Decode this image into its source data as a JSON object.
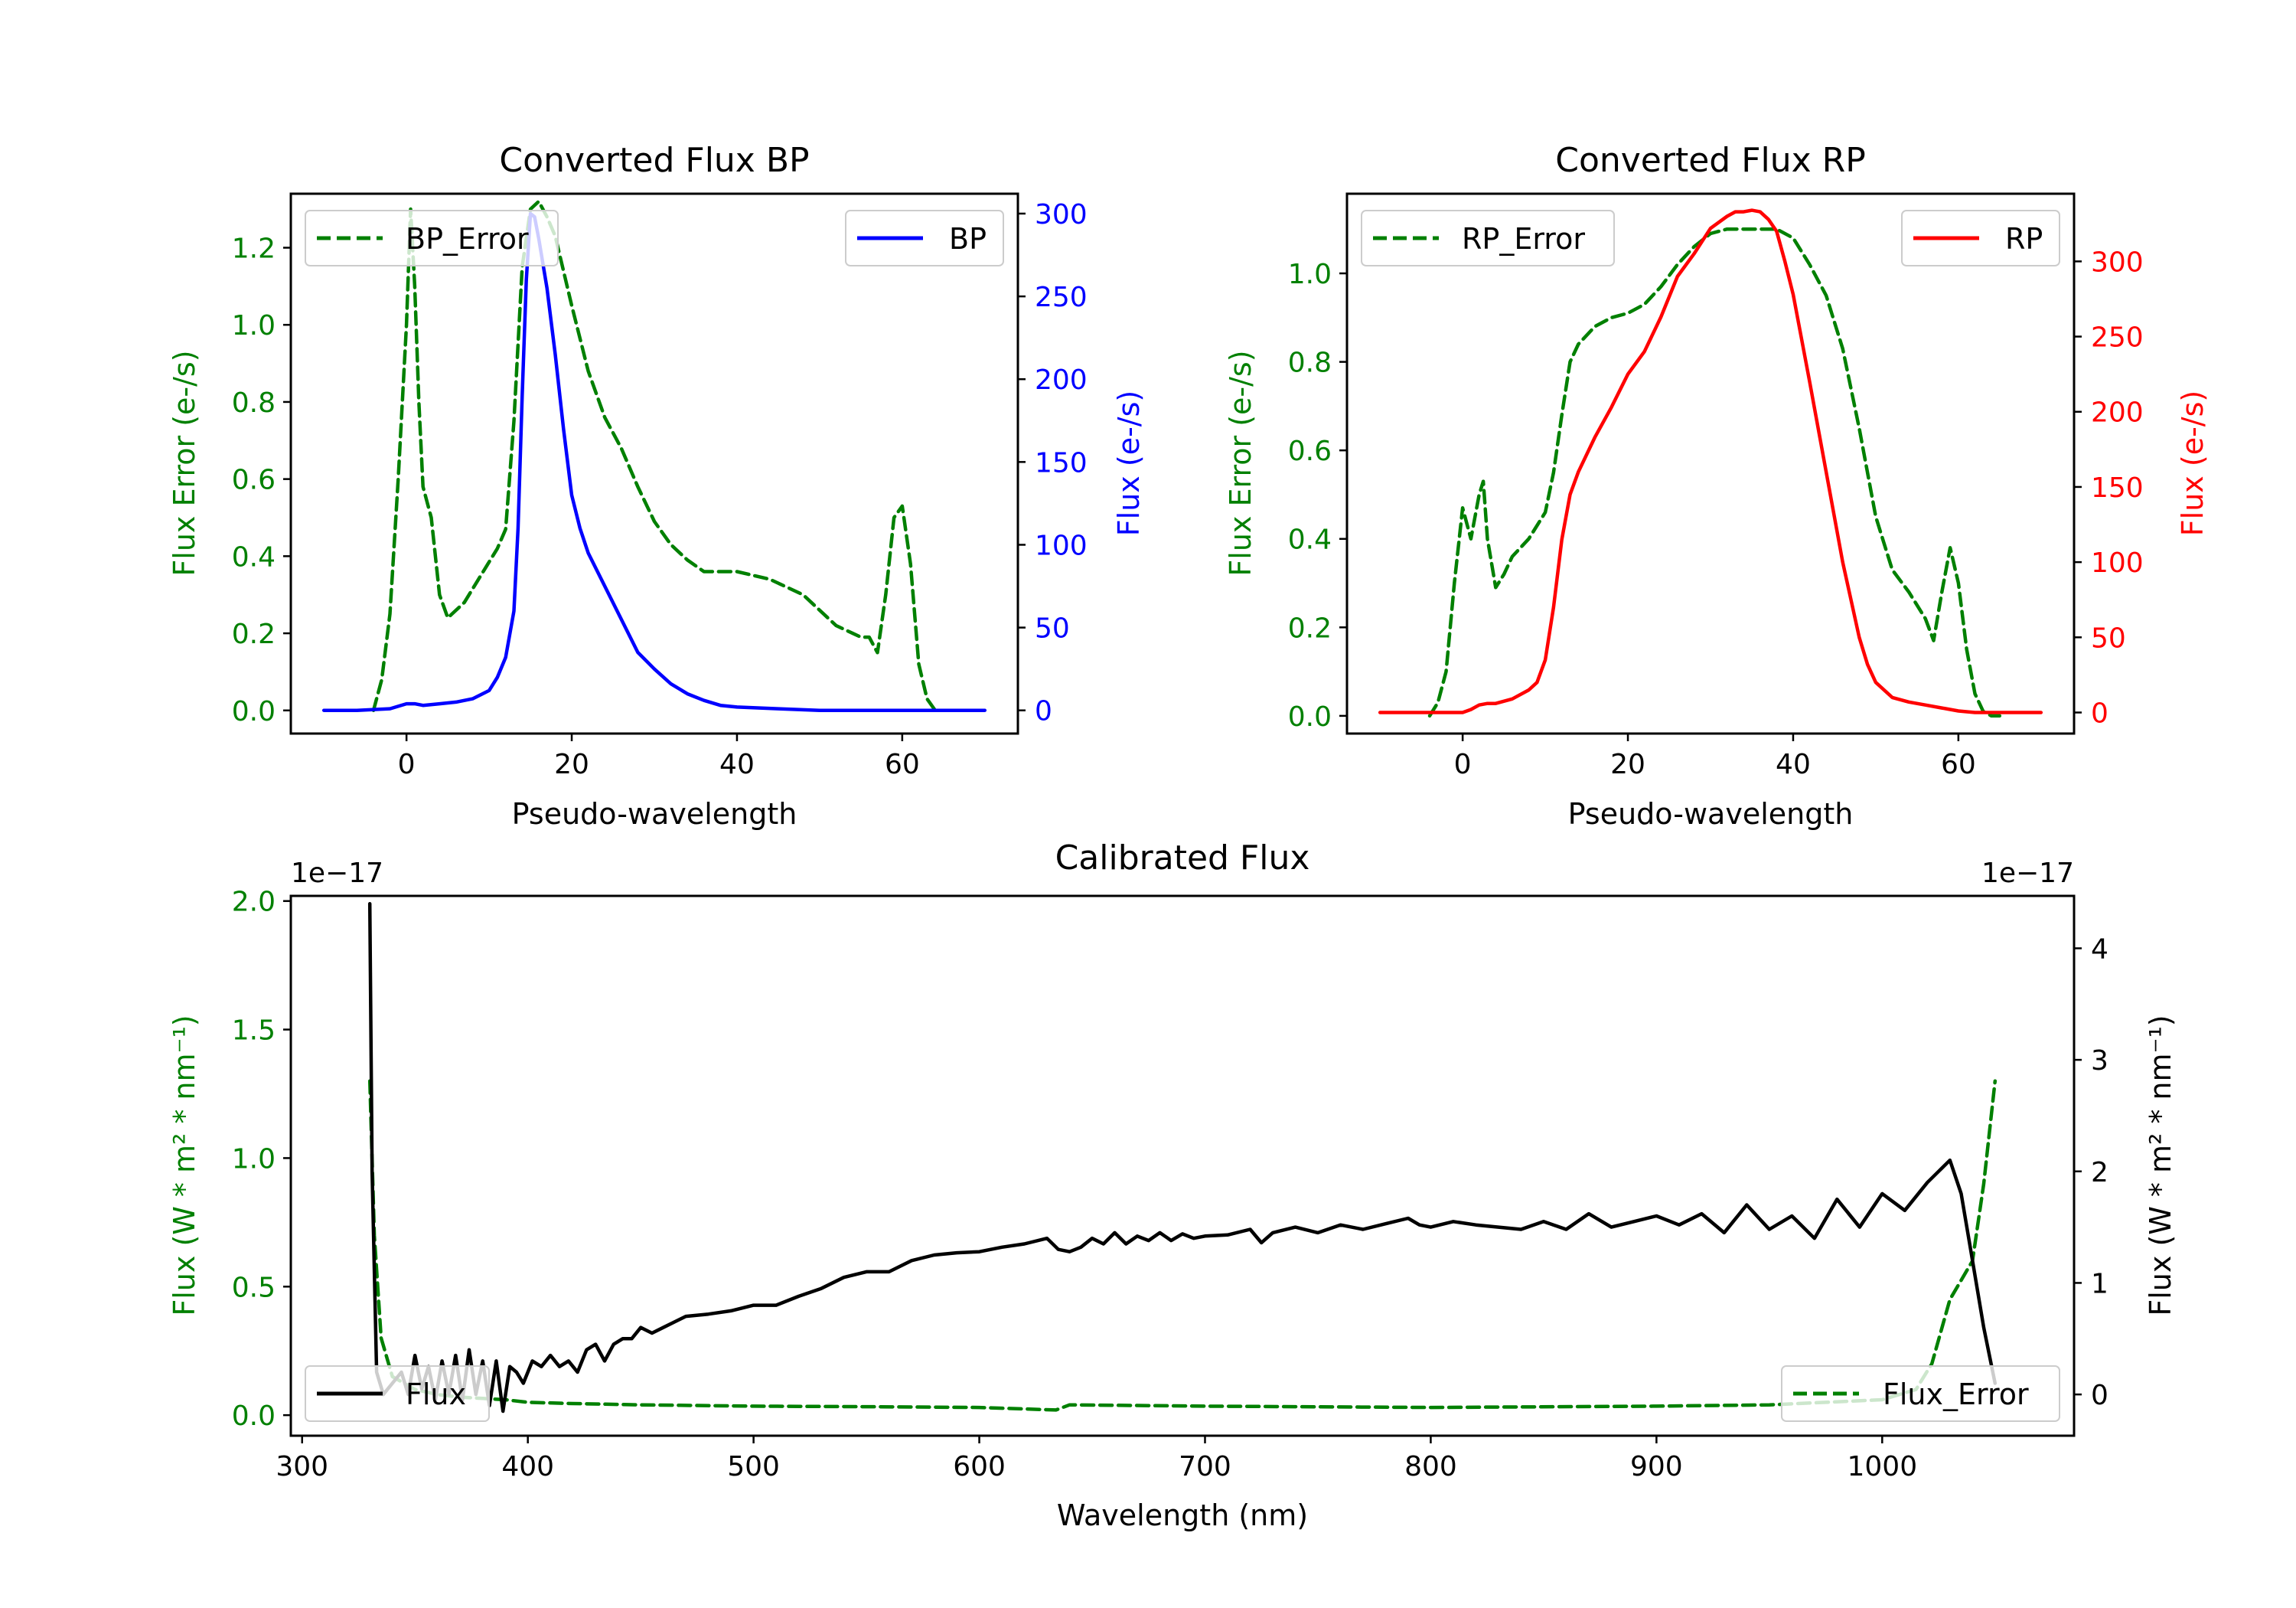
{
  "colors": {
    "bp": "#0000ff",
    "rp": "#ff0000",
    "error": "#008000",
    "flux": "#000000"
  },
  "chart_data": [
    {
      "type": "line",
      "title": "Converted Flux BP",
      "xlabel": "Pseudo-wavelength",
      "ylabel_left": "Flux Error (e-/s)",
      "ylabel_right": "Flux (e-/s)",
      "xlim": [
        -14,
        74
      ],
      "ylim_left": [
        -0.06,
        1.34
      ],
      "ylim_right": [
        -14,
        312
      ],
      "xticks": [
        "0",
        "20",
        "40",
        "60"
      ],
      "yticks_left": [
        "0.0",
        "0.2",
        "0.4",
        "0.6",
        "0.8",
        "1.0",
        "1.2"
      ],
      "yticks_right": [
        "0",
        "50",
        "100",
        "150",
        "200",
        "250",
        "300"
      ],
      "legend_left": "BP_Error",
      "legend_right": "BP",
      "series": [
        {
          "name": "BP_Error",
          "axis": "left",
          "style": "dashed",
          "x": [
            -4,
            -3,
            -2,
            -1,
            0,
            0.5,
            1,
            1.5,
            2,
            3,
            4,
            5,
            7,
            9,
            11,
            12,
            13,
            14,
            15,
            16,
            17,
            18,
            20,
            22,
            24,
            26,
            28,
            30,
            32,
            34,
            36,
            38,
            40,
            44,
            48,
            50,
            52,
            54,
            55,
            56,
            57,
            58,
            59,
            60,
            61,
            62,
            63,
            64
          ],
          "y": [
            0.0,
            0.08,
            0.25,
            0.6,
            1.0,
            1.3,
            1.1,
            0.8,
            0.58,
            0.5,
            0.3,
            0.24,
            0.28,
            0.35,
            0.42,
            0.47,
            0.75,
            1.15,
            1.3,
            1.32,
            1.28,
            1.23,
            1.05,
            0.88,
            0.76,
            0.68,
            0.58,
            0.49,
            0.43,
            0.39,
            0.36,
            0.36,
            0.36,
            0.34,
            0.3,
            0.26,
            0.22,
            0.2,
            0.19,
            0.19,
            0.15,
            0.3,
            0.5,
            0.53,
            0.38,
            0.12,
            0.03,
            0.0
          ]
        },
        {
          "name": "BP",
          "axis": "right",
          "style": "solid",
          "x": [
            -10,
            -6,
            -2,
            0,
            1,
            2,
            4,
            6,
            8,
            10,
            11,
            12,
            13,
            13.5,
            14,
            14.5,
            15,
            15.5,
            16,
            17,
            18,
            19,
            20,
            21,
            22,
            24,
            26,
            28,
            30,
            32,
            34,
            36,
            38,
            40,
            45,
            50,
            55,
            60,
            65,
            70
          ],
          "y": [
            0,
            0,
            1,
            4,
            4,
            3,
            4,
            5,
            7,
            12,
            20,
            32,
            60,
            110,
            190,
            260,
            300,
            298,
            285,
            255,
            215,
            170,
            130,
            110,
            95,
            75,
            55,
            35,
            25,
            16,
            10,
            6,
            3,
            2,
            1,
            0,
            0,
            0,
            0,
            0
          ]
        }
      ]
    },
    {
      "type": "line",
      "title": "Converted Flux RP",
      "xlabel": "Pseudo-wavelength",
      "ylabel_left": "Flux Error (e-/s)",
      "ylabel_right": "Flux (e-/s)",
      "xlim": [
        -14,
        74
      ],
      "ylim_left": [
        -0.04,
        1.18
      ],
      "ylim_right": [
        -14,
        345
      ],
      "xticks": [
        "0",
        "20",
        "40",
        "60"
      ],
      "yticks_left": [
        "0.0",
        "0.2",
        "0.4",
        "0.6",
        "0.8",
        "1.0"
      ],
      "yticks_right": [
        "0",
        "50",
        "100",
        "150",
        "200",
        "250",
        "300"
      ],
      "legend_left": "RP_Error",
      "legend_right": "RP",
      "series": [
        {
          "name": "RP_Error",
          "axis": "left",
          "style": "dashed",
          "x": [
            -4,
            -3,
            -2,
            -1,
            0,
            1,
            2,
            2.5,
            3,
            4,
            5,
            6,
            8,
            10,
            11,
            12,
            13,
            14,
            16,
            18,
            20,
            22,
            24,
            26,
            28,
            30,
            32,
            34,
            36,
            38,
            40,
            42,
            44,
            46,
            48,
            50,
            52,
            54,
            56,
            57,
            58,
            59,
            60,
            61,
            62,
            63,
            64,
            65
          ],
          "y": [
            0.0,
            0.03,
            0.1,
            0.3,
            0.47,
            0.4,
            0.5,
            0.53,
            0.4,
            0.29,
            0.32,
            0.36,
            0.4,
            0.46,
            0.55,
            0.68,
            0.8,
            0.84,
            0.88,
            0.9,
            0.91,
            0.93,
            0.97,
            1.02,
            1.06,
            1.09,
            1.1,
            1.1,
            1.1,
            1.1,
            1.08,
            1.02,
            0.95,
            0.83,
            0.65,
            0.45,
            0.33,
            0.28,
            0.22,
            0.17,
            0.28,
            0.38,
            0.3,
            0.15,
            0.05,
            0.01,
            0.0,
            0.0
          ]
        },
        {
          "name": "RP",
          "axis": "right",
          "style": "solid",
          "x": [
            -10,
            -6,
            -2,
            0,
            1,
            2,
            3,
            4,
            6,
            8,
            9,
            10,
            11,
            12,
            13,
            14,
            16,
            18,
            20,
            22,
            24,
            26,
            28,
            30,
            32,
            33,
            34,
            35,
            36,
            37,
            38,
            39,
            40,
            42,
            44,
            46,
            48,
            49,
            50,
            52,
            54,
            56,
            58,
            60,
            62,
            66,
            70
          ],
          "y": [
            0,
            0,
            0,
            0,
            2,
            5,
            6,
            6,
            9,
            15,
            20,
            35,
            70,
            115,
            145,
            160,
            183,
            203,
            225,
            240,
            263,
            290,
            305,
            322,
            330,
            333,
            333,
            334,
            333,
            328,
            320,
            300,
            278,
            220,
            160,
            100,
            50,
            32,
            20,
            10,
            7,
            5,
            3,
            1,
            0,
            0,
            0
          ]
        }
      ]
    },
    {
      "type": "line",
      "title": "Calibrated Flux",
      "xlabel": "Wavelength (nm)",
      "ylabel_left": "Flux (W * m² * nm⁻¹)",
      "ylabel_right": "Flux (W * m² * nm⁻¹)",
      "offset_left": "1e−17",
      "offset_right": "1e−17",
      "xlim": [
        295,
        1085
      ],
      "ylim_left": [
        -0.08,
        2.02
      ],
      "ylim_right": [
        -0.37,
        4.47
      ],
      "xticks": [
        "300",
        "400",
        "500",
        "600",
        "700",
        "800",
        "900",
        "1000"
      ],
      "yticks_left": [
        "0.0",
        "0.5",
        "1.0",
        "1.5",
        "2.0"
      ],
      "yticks_right": [
        "0",
        "1",
        "2",
        "3",
        "4"
      ],
      "legend_left": "Flux",
      "legend_right": "Flux_Error",
      "series": [
        {
          "name": "Flux_Error",
          "axis": "left",
          "style": "dashed",
          "x": [
            330,
            332,
            335,
            340,
            350,
            360,
            370,
            380,
            390,
            400,
            420,
            450,
            500,
            550,
            600,
            634,
            640,
            700,
            800,
            900,
            950,
            1000,
            1015,
            1022,
            1030,
            1040,
            1045,
            1050
          ],
          "y": [
            1.3,
            0.7,
            0.3,
            0.15,
            0.1,
            0.08,
            0.07,
            0.065,
            0.06,
            0.05,
            0.045,
            0.04,
            0.035,
            0.033,
            0.03,
            0.02,
            0.04,
            0.035,
            0.03,
            0.035,
            0.04,
            0.06,
            0.1,
            0.2,
            0.45,
            0.6,
            0.9,
            1.3
          ]
        },
        {
          "name": "Flux",
          "axis": "right",
          "style": "solid",
          "x": [
            330,
            331,
            333,
            336,
            340,
            344,
            347,
            350,
            353,
            356,
            359,
            362,
            365,
            368,
            371,
            374,
            377,
            380,
            383,
            386,
            389,
            392,
            395,
            398,
            402,
            406,
            410,
            414,
            418,
            422,
            426,
            430,
            434,
            438,
            442,
            446,
            450,
            455,
            460,
            465,
            470,
            480,
            490,
            500,
            510,
            520,
            530,
            540,
            550,
            560,
            570,
            580,
            590,
            600,
            610,
            620,
            630,
            635,
            640,
            645,
            650,
            655,
            660,
            665,
            670,
            675,
            680,
            685,
            690,
            695,
            700,
            710,
            720,
            725,
            730,
            740,
            750,
            760,
            770,
            780,
            790,
            795,
            800,
            810,
            820,
            830,
            840,
            850,
            860,
            870,
            880,
            890,
            900,
            910,
            920,
            930,
            940,
            950,
            960,
            970,
            980,
            990,
            1000,
            1010,
            1020,
            1025,
            1030,
            1035,
            1040,
            1045,
            1050
          ],
          "y": [
            4.4,
            2.0,
            0.2,
            0.0,
            0.1,
            0.2,
            0.0,
            0.35,
            0.05,
            0.25,
            -0.05,
            0.3,
            0.0,
            0.35,
            -0.05,
            0.4,
            0.0,
            0.3,
            -0.1,
            0.3,
            -0.15,
            0.25,
            0.2,
            0.1,
            0.3,
            0.25,
            0.35,
            0.25,
            0.3,
            0.2,
            0.4,
            0.45,
            0.3,
            0.45,
            0.5,
            0.5,
            0.6,
            0.55,
            0.6,
            0.65,
            0.7,
            0.72,
            0.75,
            0.8,
            0.8,
            0.88,
            0.95,
            1.05,
            1.1,
            1.1,
            1.2,
            1.25,
            1.27,
            1.28,
            1.32,
            1.35,
            1.4,
            1.3,
            1.28,
            1.32,
            1.4,
            1.35,
            1.45,
            1.35,
            1.42,
            1.38,
            1.45,
            1.38,
            1.44,
            1.4,
            1.42,
            1.43,
            1.48,
            1.36,
            1.45,
            1.5,
            1.45,
            1.52,
            1.48,
            1.53,
            1.58,
            1.52,
            1.5,
            1.55,
            1.52,
            1.5,
            1.48,
            1.55,
            1.48,
            1.62,
            1.5,
            1.55,
            1.6,
            1.52,
            1.62,
            1.45,
            1.7,
            1.48,
            1.6,
            1.4,
            1.75,
            1.5,
            1.8,
            1.65,
            1.9,
            2.0,
            2.1,
            1.8,
            1.2,
            0.6,
            0.1
          ]
        }
      ]
    }
  ]
}
